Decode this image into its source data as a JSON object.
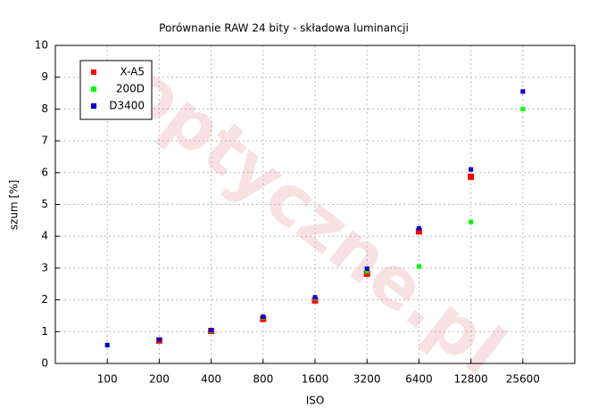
{
  "chart_data": {
    "type": "scatter",
    "title": "Porównanie RAW 24 bity - składowa luminancji",
    "x_label": "ISO",
    "y_label": "szum [%]",
    "watermark": "optyczne.pl",
    "categories": [
      "100",
      "200",
      "400",
      "800",
      "1600",
      "3200",
      "6400",
      "12800",
      "25600"
    ],
    "series": [
      {
        "name": "X-A5",
        "color": "#ff0000",
        "values": [
          null,
          0.72,
          1.02,
          1.4,
          1.98,
          2.82,
          4.15,
          5.87,
          null
        ]
      },
      {
        "name": "200D",
        "color": "#00ff00",
        "values": [
          0.57,
          0.74,
          1.03,
          1.45,
          2.05,
          2.9,
          3.05,
          4.45,
          8.0
        ]
      },
      {
        "name": "D3400",
        "color": "#0000cc",
        "values": [
          0.58,
          0.75,
          1.05,
          1.47,
          2.08,
          2.98,
          4.25,
          6.1,
          8.55
        ]
      }
    ],
    "ylim": [
      0,
      10
    ],
    "yticks": [
      0,
      1,
      2,
      3,
      4,
      5,
      6,
      7,
      8,
      9,
      10
    ],
    "grid": true,
    "legend": "top-left"
  }
}
